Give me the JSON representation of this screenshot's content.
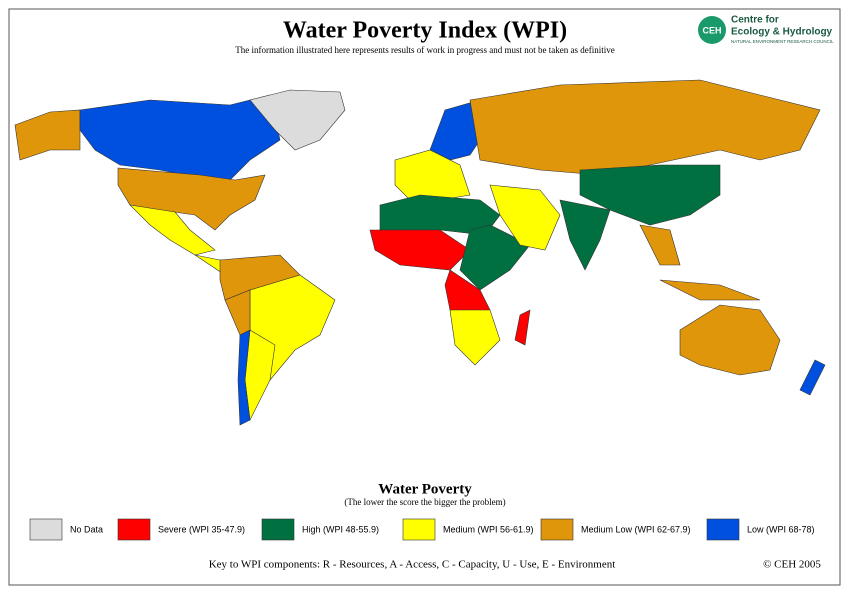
{
  "header": {
    "title": "Water Poverty Index (WPI)",
    "subtitle": "The information illustrated here represents results of work in progress and must not be taken as definitive"
  },
  "logo": {
    "mark": "CEH",
    "name_line1": "Centre for",
    "name_line2": "Ecology & Hydrology",
    "org": "NATURAL ENVIRONMENT RESEARCH COUNCIL"
  },
  "legend": {
    "title": "Water Poverty",
    "subtitle": "(The lower the score the bigger the problem)",
    "items": [
      {
        "label": "No Data",
        "color": "#dcdcdc"
      },
      {
        "label": "Severe (WPI 35-47.9)",
        "color": "#ff0000"
      },
      {
        "label": "High (WPI 48-55.9)",
        "color": "#007040"
      },
      {
        "label": "Medium (WPI 56-61.9)",
        "color": "#ffff00"
      },
      {
        "label": "Medium Low (WPI 62-67.9)",
        "color": "#e0960a"
      },
      {
        "label": "Low (WPI 68-78)",
        "color": "#0050e0"
      }
    ]
  },
  "footer": {
    "key": "Key to WPI components: R - Resources, A - Access, C - Capacity, U - Use, E - Environment",
    "copyright": "© CEH 2005"
  }
}
